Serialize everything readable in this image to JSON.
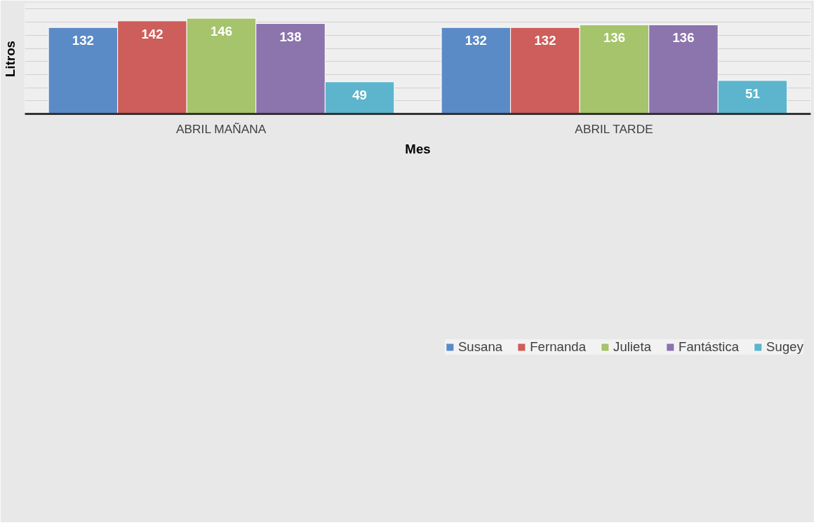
{
  "chart_data": {
    "type": "bar",
    "xlabel": "Mes",
    "ylabel": "Litros",
    "categories": [
      "ABRIL MAÑANA",
      "ABRIL TARDE"
    ],
    "series": [
      {
        "name": "Susana",
        "color": "#5b8bc7",
        "values": [
          132,
          132
        ]
      },
      {
        "name": "Fernanda",
        "color": "#cd5e5b",
        "values": [
          142,
          132
        ]
      },
      {
        "name": "Julieta",
        "color": "#a5c46b",
        "values": [
          146,
          136
        ]
      },
      {
        "name": "Fantástica",
        "color": "#8c74ad",
        "values": [
          138,
          136
        ]
      },
      {
        "name": "Sugey",
        "color": "#5cb5cc",
        "values": [
          49,
          51
        ]
      }
    ],
    "ylim": [
      0,
      168
    ],
    "yticks": [
      {
        "value": 0,
        "label": null
      },
      {
        "value": 20,
        "label": null
      },
      {
        "value": 40,
        "label": null
      },
      {
        "value": 60,
        "label": null
      },
      {
        "value": 80,
        "label": null
      },
      {
        "value": 100,
        "label": null
      },
      {
        "value": 120,
        "label": null
      },
      {
        "value": 140,
        "label": null
      },
      {
        "value": 160,
        "label": null
      }
    ],
    "tick_labels": "x",
    "grid": "y",
    "legend": "bottom",
    "data_labels": true
  }
}
